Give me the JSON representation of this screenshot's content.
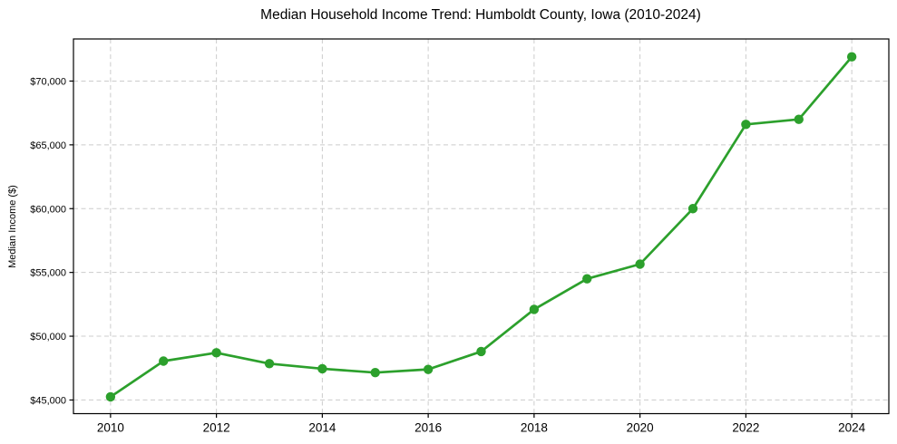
{
  "chart_data": {
    "type": "line",
    "title": "Median Household Income Trend: Humboldt County, Iowa (2010-2024)",
    "xlabel": "",
    "ylabel": "Median Income ($)",
    "x": [
      2010,
      2011,
      2012,
      2013,
      2014,
      2015,
      2016,
      2017,
      2018,
      2019,
      2020,
      2021,
      2022,
      2023,
      2024
    ],
    "values": [
      45250,
      48050,
      48700,
      47850,
      47450,
      47150,
      47400,
      48800,
      52100,
      54500,
      55650,
      60000,
      66600,
      67000,
      71900
    ],
    "xticks": [
      2010,
      2012,
      2014,
      2016,
      2018,
      2020,
      2022,
      2024
    ],
    "yticks": [
      45000,
      50000,
      55000,
      60000,
      65000,
      70000
    ],
    "ytick_labels": [
      "$45,000",
      "$50,000",
      "$55,000",
      "$60,000",
      "$65,000",
      "$70,000"
    ],
    "xlim": [
      2009.3,
      2024.7
    ],
    "ylim": [
      43930,
      73300
    ],
    "grid": true,
    "grid_linestyle": "dashed",
    "legend": false,
    "marker": "circle",
    "colors": {
      "line": "#2ca02c",
      "marker": "#2ca02c",
      "grid": "#cccccc",
      "axis": "#000000",
      "text": "#000000",
      "background": "#ffffff"
    }
  }
}
